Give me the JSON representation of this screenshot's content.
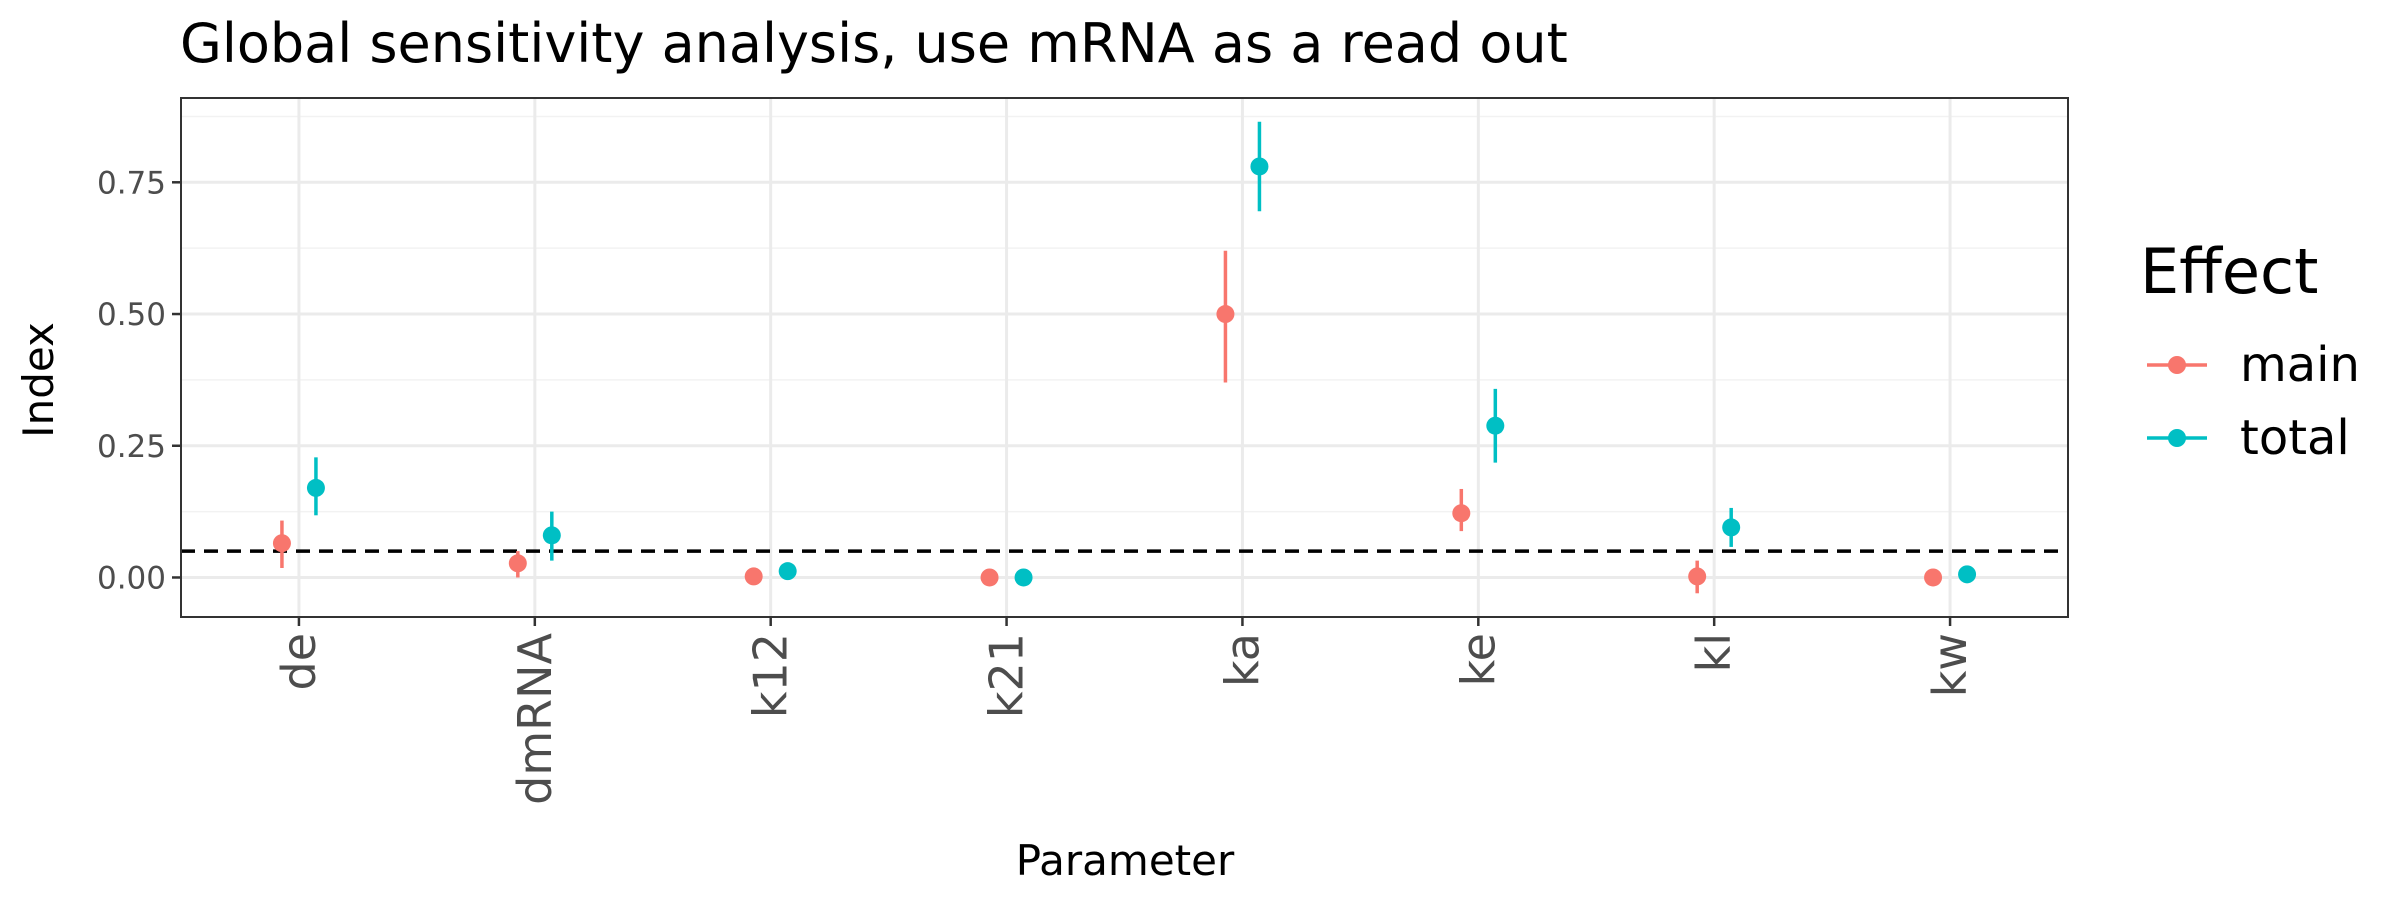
{
  "chart_data": {
    "type": "scatter",
    "title": "Global sensitivity analysis, use mRNA as a read out",
    "xlabel": "Parameter",
    "ylabel": "Index",
    "categories": [
      "de",
      "dmRNA",
      "k12",
      "k21",
      "ka",
      "ke",
      "kl",
      "kw"
    ],
    "ylim": [
      -0.075,
      0.91
    ],
    "y_ticks": [
      {
        "value": 0.0,
        "label": "0.00"
      },
      {
        "value": 0.25,
        "label": "0.25"
      },
      {
        "value": 0.5,
        "label": "0.50"
      },
      {
        "value": 0.75,
        "label": "0.75"
      }
    ],
    "grid": true,
    "reference_line": {
      "y": 0.05,
      "style": "dashed"
    },
    "legend": {
      "title": "Effect",
      "position": "right"
    },
    "series": [
      {
        "name": "main",
        "color": "#F8766D",
        "values": [
          0.065,
          0.027,
          0.002,
          0.0,
          0.5,
          0.122,
          0.002,
          0.0
        ],
        "lower": [
          0.018,
          0.0,
          0.002,
          0.0,
          0.37,
          0.088,
          -0.03,
          0.0
        ],
        "upper": [
          0.108,
          0.05,
          0.002,
          0.0,
          0.62,
          0.168,
          0.032,
          0.0
        ]
      },
      {
        "name": "total",
        "color": "#00BFC4",
        "values": [
          0.17,
          0.08,
          0.012,
          0.0,
          0.78,
          0.288,
          0.095,
          0.006
        ],
        "lower": [
          0.118,
          0.032,
          0.012,
          0.0,
          0.695,
          0.218,
          0.058,
          0.006
        ],
        "upper": [
          0.228,
          0.125,
          0.012,
          0.0,
          0.865,
          0.358,
          0.132,
          0.006
        ]
      }
    ]
  }
}
